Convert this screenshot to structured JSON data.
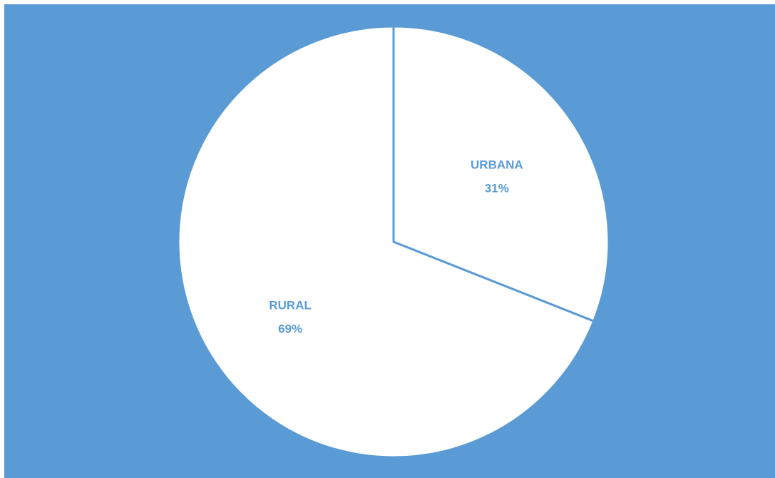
{
  "chart_data": {
    "type": "pie",
    "slices": [
      {
        "label": "URBANA",
        "value": 31,
        "value_label": "31%"
      },
      {
        "label": "RURAL",
        "value": 69,
        "value_label": "69%"
      }
    ],
    "legend": "none",
    "colors": {
      "background": "#5b9bd5",
      "slice_fill": "#ffffff",
      "slice_border": "#5b9bd5",
      "label_text": "#5b9bd5"
    }
  }
}
